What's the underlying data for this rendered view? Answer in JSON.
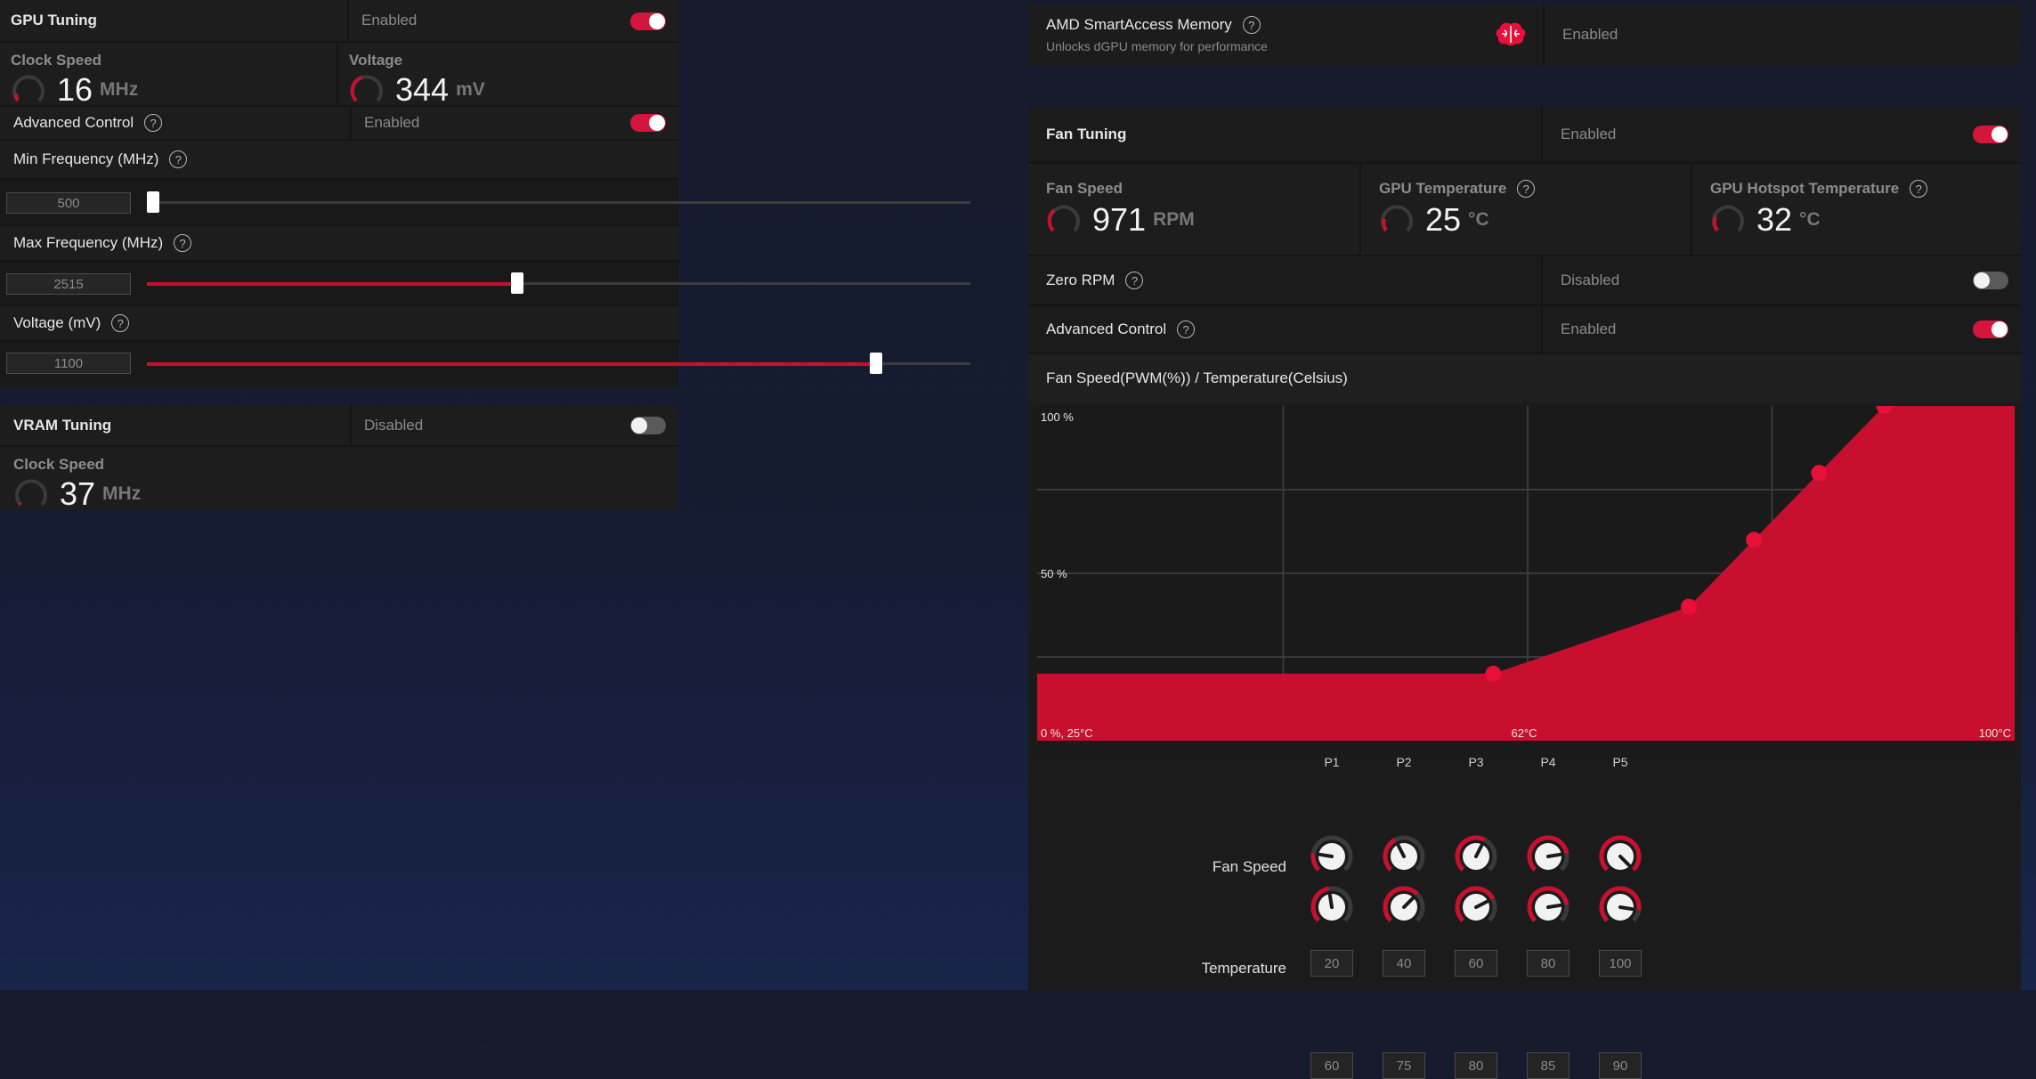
{
  "gpu_tuning": {
    "title": "GPU Tuning",
    "status": "Enabled",
    "clock": {
      "label": "Clock Speed",
      "value": "16",
      "unit": "MHz"
    },
    "voltage": {
      "label": "Voltage",
      "value": "344",
      "unit": "mV"
    },
    "advanced": {
      "label": "Advanced Control",
      "status": "Enabled"
    },
    "min_freq": {
      "label": "Min Frequency (MHz)",
      "value": "500",
      "fraction": 0.0
    },
    "max_freq": {
      "label": "Max Frequency (MHz)",
      "value": "2515",
      "fraction": 0.45
    },
    "volt_slider": {
      "label": "Voltage (mV)",
      "value": "1100",
      "fraction": 0.885
    }
  },
  "vram_tuning": {
    "title": "VRAM Tuning",
    "status": "Disabled",
    "clock": {
      "label": "Clock Speed",
      "value": "37",
      "unit": "MHz"
    }
  },
  "sam": {
    "title": "AMD SmartAccess Memory",
    "subtitle": "Unlocks dGPU memory for performance",
    "status": "Enabled"
  },
  "fan_tuning": {
    "title": "Fan Tuning",
    "status": "Enabled",
    "fan_speed": {
      "label": "Fan Speed",
      "value": "971",
      "unit": "RPM"
    },
    "gpu_temp": {
      "label": "GPU Temperature",
      "value": "25",
      "unit": "°C"
    },
    "hotspot_temp": {
      "label": "GPU Hotspot Temperature",
      "value": "32",
      "unit": "°C"
    },
    "zero_rpm": {
      "label": "Zero RPM",
      "status": "Disabled"
    },
    "advanced": {
      "label": "Advanced Control",
      "status": "Enabled"
    },
    "curve_title": "Fan Speed(PWM(%)) / Temperature(Celsius)",
    "points_row_labels": {
      "speed": "Fan Speed",
      "temp": "Temperature"
    },
    "points": [
      {
        "name": "P1",
        "speed": "20",
        "temp": "60"
      },
      {
        "name": "P2",
        "speed": "40",
        "temp": "75"
      },
      {
        "name": "P3",
        "speed": "60",
        "temp": "80"
      },
      {
        "name": "P4",
        "speed": "80",
        "temp": "85"
      },
      {
        "name": "P5",
        "speed": "100",
        "temp": "90"
      }
    ]
  },
  "chart_data": {
    "type": "area",
    "title": "Fan Speed(PWM(%)) / Temperature(Celsius)",
    "x": [
      25,
      60,
      75,
      80,
      85,
      90,
      100
    ],
    "series": [
      {
        "values": [
          20,
          20,
          40,
          60,
          80,
          100,
          100
        ]
      }
    ],
    "xlim": [
      25,
      100
    ],
    "ylim": [
      0,
      100
    ],
    "x_tick_labels": [
      "0 %, 25°C",
      "62°C",
      "100°C"
    ],
    "y_tick_labels": [
      "100 %",
      "50 %"
    ],
    "grid": true,
    "colors": {
      "fill": "#c8102e",
      "point": "#e8103a"
    }
  },
  "colors": {
    "accent": "#c8102e",
    "panel": "#1d1d1d"
  }
}
